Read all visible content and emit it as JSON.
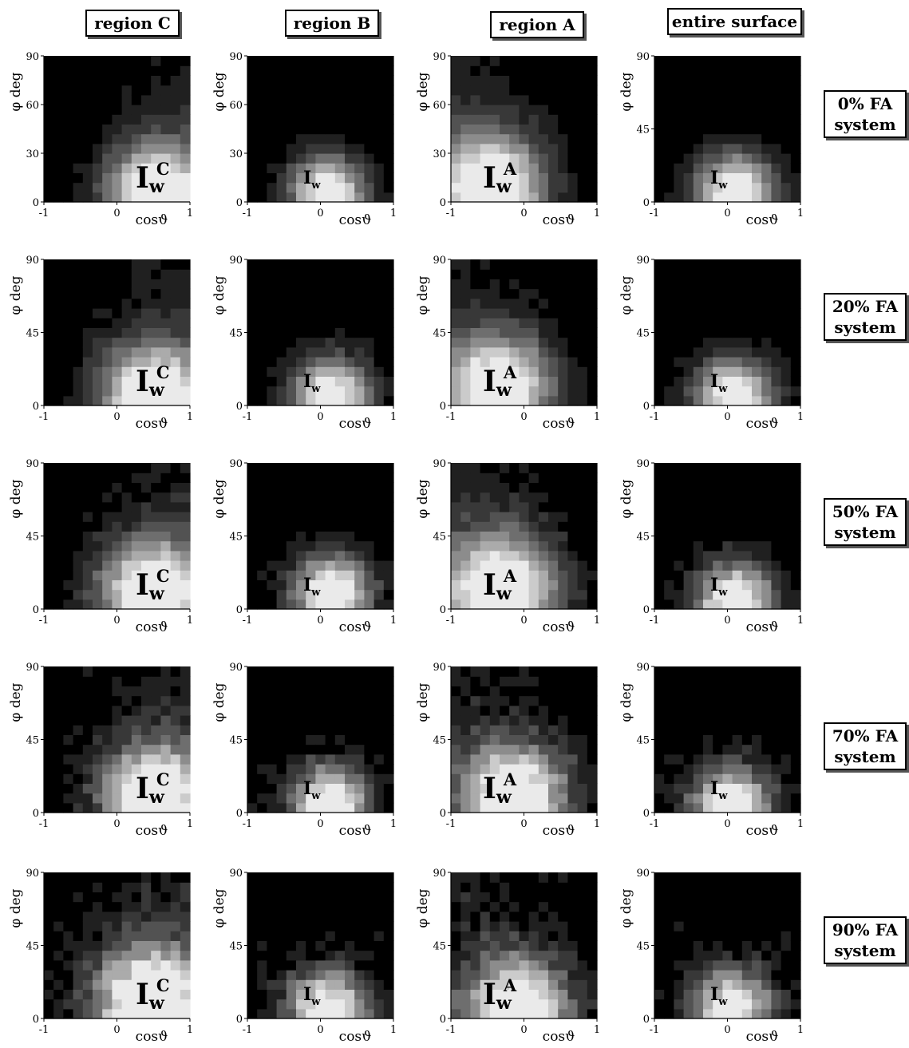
{
  "column_headers": [
    "region C",
    "region B",
    "region A",
    "entire surface"
  ],
  "row_labels": [
    [
      "0% FA",
      "system"
    ],
    [
      "20% FA",
      "system"
    ],
    [
      "50% FA",
      "system"
    ],
    [
      "70% FA",
      "system"
    ],
    [
      "90% FA",
      "system"
    ]
  ],
  "panel_labels": [
    {
      "base": "I",
      "sub": "w",
      "sup": "C"
    },
    {
      "base": "I",
      "sub": "w",
      "sup": ""
    },
    {
      "base": "I",
      "sub": "w",
      "sup": "A"
    },
    {
      "base": "I",
      "sub": "w",
      "sup": ""
    }
  ],
  "chart_data": {
    "type": "heatmap",
    "colormap": "grayscale contour (black = low, white = high)",
    "xlabel": "cosϑ",
    "ylabel": "φ deg",
    "xlim": [
      -1,
      1
    ],
    "ylim": [
      0,
      90
    ],
    "x_ticks": [
      "-1",
      "0",
      "1"
    ],
    "y_ticks_by_column": [
      [
        "0",
        "30",
        "60",
        "90"
      ],
      [
        "0",
        "30",
        "60",
        "90"
      ],
      [
        "0",
        "30",
        "60",
        "90"
      ],
      [
        "0",
        "45",
        "90"
      ]
    ],
    "y_ticks_default": [
      "0",
      "45",
      "90"
    ],
    "approx_peaks": [
      [
        {
          "x": 0.55,
          "y": 5,
          "s": 0.42
        },
        {
          "x": 0.1,
          "y": 5,
          "s": 0.32
        },
        {
          "x": -0.45,
          "y": 10,
          "s": 0.45
        },
        {
          "x": 0.1,
          "y": 5,
          "s": 0.34
        }
      ],
      [
        {
          "x": 0.5,
          "y": 5,
          "s": 0.45
        },
        {
          "x": 0.15,
          "y": 5,
          "s": 0.33
        },
        {
          "x": -0.35,
          "y": 10,
          "s": 0.45
        },
        {
          "x": 0.1,
          "y": 5,
          "s": 0.33
        }
      ],
      [
        {
          "x": 0.5,
          "y": 10,
          "s": 0.45
        },
        {
          "x": 0.15,
          "y": 10,
          "s": 0.33
        },
        {
          "x": -0.3,
          "y": 12,
          "s": 0.48
        },
        {
          "x": 0.1,
          "y": 5,
          "s": 0.33
        }
      ],
      [
        {
          "x": 0.5,
          "y": 10,
          "s": 0.45
        },
        {
          "x": 0.1,
          "y": 5,
          "s": 0.33
        },
        {
          "x": -0.1,
          "y": 10,
          "s": 0.45
        },
        {
          "x": 0.05,
          "y": 5,
          "s": 0.33
        }
      ],
      [
        {
          "x": 0.45,
          "y": 10,
          "s": 0.5
        },
        {
          "x": 0.1,
          "y": 5,
          "s": 0.34
        },
        {
          "x": -0.05,
          "y": 5,
          "s": 0.45
        },
        {
          "x": 0.05,
          "y": 5,
          "s": 0.34
        }
      ]
    ]
  }
}
